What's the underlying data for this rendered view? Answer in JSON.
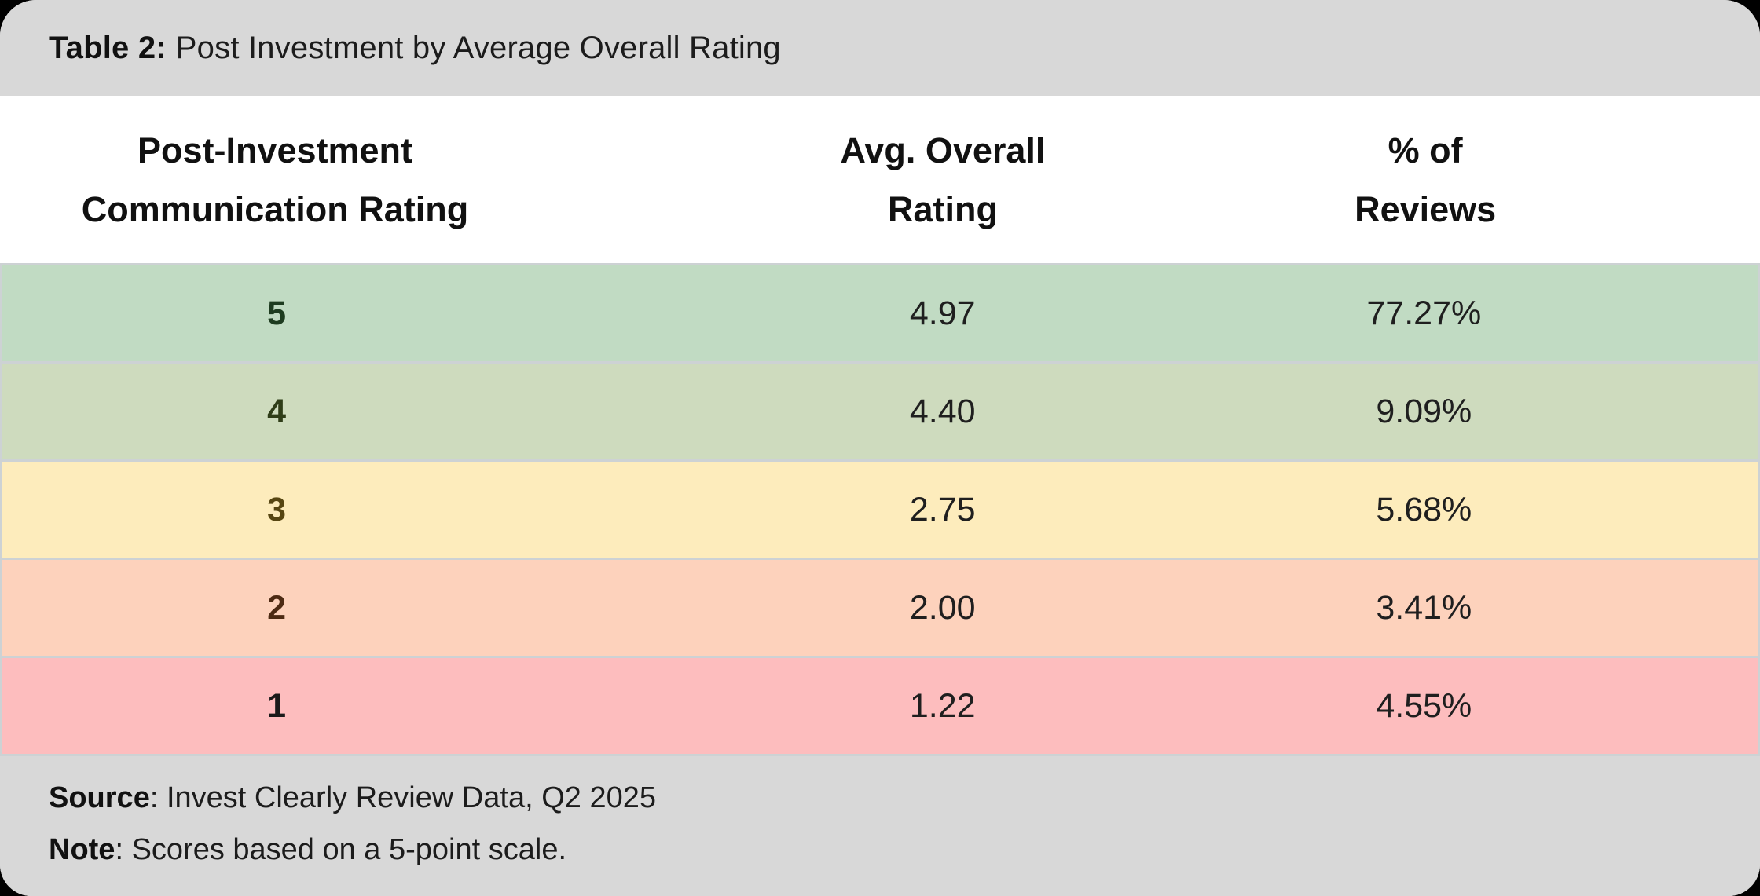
{
  "title": {
    "prefix": "Table 2:",
    "text": "Post Investment by Average Overall Rating"
  },
  "columns": [
    {
      "line1": "Post-Investment",
      "line2": "Communication Rating"
    },
    {
      "line1": "Avg. Overall",
      "line2": "Rating"
    },
    {
      "line1": "% of",
      "line2": "Reviews"
    }
  ],
  "rows": [
    {
      "rating": "5",
      "avg_rating": "4.97",
      "pct_reviews": "77.27%",
      "row_bg": "#c1dbc3",
      "rating_color": "#1e3c20"
    },
    {
      "rating": "4",
      "avg_rating": "4.40",
      "pct_reviews": "9.09%",
      "row_bg": "#cedbbe",
      "rating_color": "#2f3d18"
    },
    {
      "rating": "3",
      "avg_rating": "2.75",
      "pct_reviews": "5.68%",
      "row_bg": "#fdecbc",
      "rating_color": "#574612"
    },
    {
      "rating": "2",
      "avg_rating": "2.00",
      "pct_reviews": "3.41%",
      "row_bg": "#fdd2bc",
      "rating_color": "#4d2a13"
    },
    {
      "rating": "1",
      "avg_rating": "1.22",
      "pct_reviews": "4.55%",
      "row_bg": "#fdbdbe",
      "rating_color": "#1a1a1a"
    }
  ],
  "footer": {
    "source_label": "Source",
    "source_text": ": Invest Clearly Review Data, Q2 2025",
    "note_label": "Note",
    "note_text": ": Scores based on a 5-point scale."
  },
  "colors": {
    "page_background": "#000000",
    "bar_gray": "#d8d8d8",
    "header_background": "#ffffff",
    "separator": "#cdd2d4",
    "row_green": "#c1dbc3",
    "row_olive_green": "#cedbbe",
    "row_yellow": "#fdecbc",
    "row_peach": "#fdd2bc",
    "row_pink": "#fdbdbe"
  },
  "chart_data": {
    "type": "table",
    "title": "Table 2: Post Investment by Average Overall Rating",
    "columns": [
      "Post-Investment Communication Rating",
      "Avg. Overall Rating",
      "% of Reviews"
    ],
    "rows": [
      [
        5,
        4.97,
        "77.27%"
      ],
      [
        4,
        4.4,
        "9.09%"
      ],
      [
        3,
        2.75,
        "5.68%"
      ],
      [
        2,
        2.0,
        "3.41%"
      ],
      [
        1,
        1.22,
        "4.55%"
      ]
    ],
    "source": "Invest Clearly Review Data, Q2 2025",
    "note": "Scores based on a 5-point scale.",
    "layout": "rows color-coded green (high) to red (low); values centered; title bar and footnote bar in gray"
  }
}
